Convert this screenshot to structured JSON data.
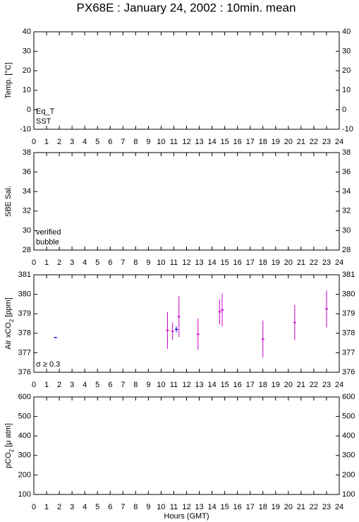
{
  "title": "PX68E : January 24, 2002 : 10min. mean",
  "chart_data": [
    {
      "type": "scatter",
      "ylabel": [
        "Temp. [°C]"
      ],
      "xlim": [
        0,
        24
      ],
      "xticks": [
        0,
        1,
        2,
        3,
        4,
        5,
        6,
        7,
        8,
        9,
        10,
        11,
        12,
        13,
        14,
        15,
        16,
        17,
        18,
        19,
        20,
        21,
        22,
        23,
        24
      ],
      "ylim": [
        -10,
        40
      ],
      "yticks": [
        -10,
        0,
        10,
        20,
        30,
        40
      ],
      "series": [
        {
          "name": "Eq_T",
          "color": "#cc0000",
          "x": [],
          "values": []
        },
        {
          "name": "SST",
          "color": "#0000cc",
          "x": [],
          "values": []
        }
      ]
    },
    {
      "type": "scatter",
      "ylabel": [
        "SBE Sal."
      ],
      "xlim": [
        0,
        24
      ],
      "xticks": [
        0,
        1,
        2,
        3,
        4,
        5,
        6,
        7,
        8,
        9,
        10,
        11,
        12,
        13,
        14,
        15,
        16,
        17,
        18,
        19,
        20,
        21,
        22,
        23,
        24
      ],
      "ylim": [
        28,
        38
      ],
      "yticks": [
        28,
        30,
        32,
        34,
        36,
        38
      ],
      "series": [
        {
          "name": "verified",
          "color": "#0000cc",
          "x": [],
          "values": []
        },
        {
          "name": "bubble",
          "color": "#cc00cc",
          "x": [],
          "values": []
        }
      ]
    },
    {
      "type": "scatter",
      "ylabel": [
        "Air xCO",
        "2",
        " [ppm]"
      ],
      "xlim": [
        0,
        24
      ],
      "xticks": [
        0,
        1,
        2,
        3,
        4,
        5,
        6,
        7,
        8,
        9,
        10,
        11,
        12,
        13,
        14,
        15,
        16,
        17,
        18,
        19,
        20,
        21,
        22,
        23,
        24
      ],
      "ylim": [
        376,
        381
      ],
      "yticks": [
        376,
        377,
        378,
        379,
        380,
        381
      ],
      "series": [
        {
          "color": "#0000cc",
          "x": [
            1.7,
            11.2
          ],
          "values": [
            377.78,
            378.2
          ],
          "errors": [
            0.02,
            0.15
          ]
        },
        {
          "name": "σ ≥ 0.3",
          "color": "#cc00cc",
          "x": [
            10.5,
            10.9,
            11.4,
            12.9,
            14.6,
            14.8,
            18.0,
            20.5,
            23.0
          ],
          "values": [
            378.15,
            378.1,
            378.85,
            377.95,
            379.1,
            379.2,
            377.7,
            378.55,
            379.25
          ],
          "errors": [
            0.95,
            0.45,
            1.05,
            0.8,
            0.65,
            0.85,
            0.95,
            0.9,
            0.95
          ]
        }
      ]
    },
    {
      "type": "scatter",
      "ylabel": [
        "pCO",
        "2",
        " [μ atm]"
      ],
      "xlabel": "Hours (GMT)",
      "xlim": [
        0,
        24
      ],
      "xticks": [
        0,
        1,
        2,
        3,
        4,
        5,
        6,
        7,
        8,
        9,
        10,
        11,
        12,
        13,
        14,
        15,
        16,
        17,
        18,
        19,
        20,
        21,
        22,
        23,
        24
      ],
      "ylim": [
        100,
        600
      ],
      "yticks": [
        100,
        200,
        300,
        400,
        500,
        600
      ],
      "series": []
    }
  ]
}
